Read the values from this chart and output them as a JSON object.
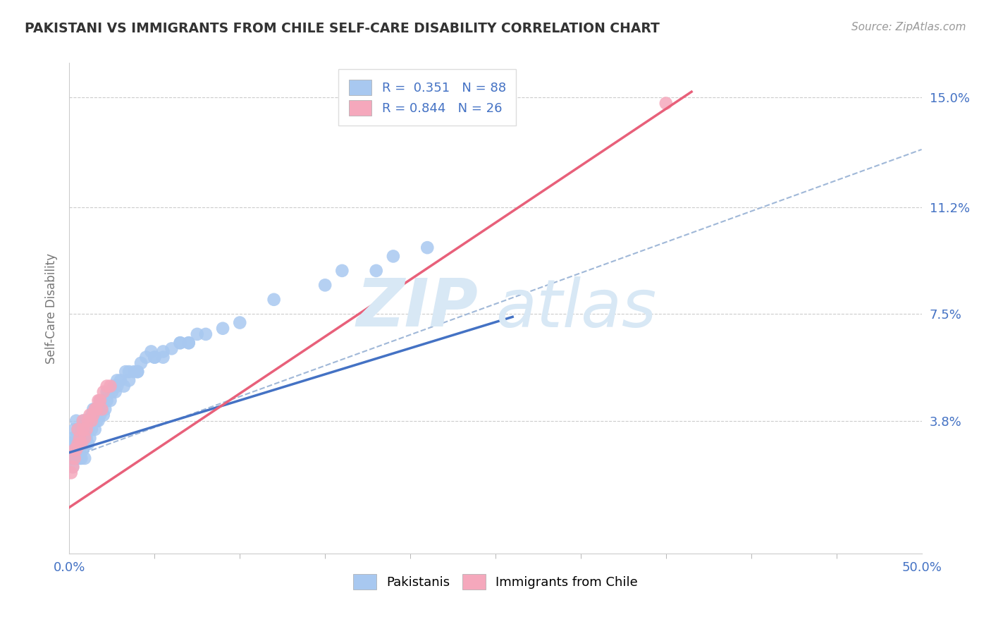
{
  "title": "PAKISTANI VS IMMIGRANTS FROM CHILE SELF-CARE DISABILITY CORRELATION CHART",
  "source_text": "Source: ZipAtlas.com",
  "ylabel": "Self-Care Disability",
  "xlim": [
    0.0,
    0.5
  ],
  "ylim": [
    -0.008,
    0.162
  ],
  "xticklabels": [
    "0.0%",
    "50.0%"
  ],
  "ytick_values": [
    0.038,
    0.075,
    0.112,
    0.15
  ],
  "ytick_labels": [
    "3.8%",
    "7.5%",
    "11.2%",
    "15.0%"
  ],
  "blue_R": 0.351,
  "blue_N": 88,
  "pink_R": 0.844,
  "pink_N": 26,
  "blue_color": "#A8C8F0",
  "pink_color": "#F5A8BC",
  "blue_line_color": "#4472C4",
  "pink_line_color": "#E8607A",
  "dashed_line_color": "#A0B8D8",
  "grid_color": "#CCCCCC",
  "title_color": "#333333",
  "axis_label_color": "#777777",
  "tick_label_color": "#4472C4",
  "watermark_color": "#D8E8F5",
  "blue_scatter_x": [
    0.001,
    0.001,
    0.002,
    0.002,
    0.002,
    0.003,
    0.003,
    0.003,
    0.004,
    0.004,
    0.004,
    0.005,
    0.005,
    0.005,
    0.005,
    0.006,
    0.006,
    0.006,
    0.007,
    0.007,
    0.007,
    0.008,
    0.008,
    0.008,
    0.009,
    0.009,
    0.01,
    0.01,
    0.01,
    0.011,
    0.011,
    0.012,
    0.012,
    0.013,
    0.013,
    0.014,
    0.014,
    0.015,
    0.015,
    0.016,
    0.016,
    0.017,
    0.017,
    0.018,
    0.018,
    0.019,
    0.02,
    0.02,
    0.021,
    0.022,
    0.023,
    0.024,
    0.025,
    0.026,
    0.027,
    0.028,
    0.03,
    0.032,
    0.035,
    0.038,
    0.04,
    0.042,
    0.045,
    0.048,
    0.05,
    0.055,
    0.06,
    0.065,
    0.07,
    0.075,
    0.08,
    0.09,
    0.1,
    0.12,
    0.15,
    0.18,
    0.19,
    0.21,
    0.05,
    0.16,
    0.022,
    0.035,
    0.04,
    0.055,
    0.065,
    0.07,
    0.028,
    0.033,
    0.01,
    0.015
  ],
  "blue_scatter_y": [
    0.03,
    0.025,
    0.028,
    0.032,
    0.022,
    0.03,
    0.035,
    0.025,
    0.032,
    0.028,
    0.038,
    0.03,
    0.025,
    0.035,
    0.028,
    0.032,
    0.028,
    0.025,
    0.035,
    0.03,
    0.025,
    0.038,
    0.032,
    0.028,
    0.032,
    0.025,
    0.038,
    0.032,
    0.03,
    0.035,
    0.03,
    0.038,
    0.032,
    0.04,
    0.035,
    0.042,
    0.038,
    0.04,
    0.035,
    0.042,
    0.038,
    0.042,
    0.038,
    0.045,
    0.04,
    0.042,
    0.045,
    0.04,
    0.042,
    0.045,
    0.048,
    0.045,
    0.048,
    0.05,
    0.048,
    0.05,
    0.052,
    0.05,
    0.052,
    0.055,
    0.055,
    0.058,
    0.06,
    0.062,
    0.06,
    0.062,
    0.063,
    0.065,
    0.065,
    0.068,
    0.068,
    0.07,
    0.072,
    0.08,
    0.085,
    0.09,
    0.095,
    0.098,
    0.06,
    0.09,
    0.048,
    0.055,
    0.055,
    0.06,
    0.065,
    0.065,
    0.052,
    0.055,
    0.038,
    0.042
  ],
  "pink_scatter_x": [
    0.001,
    0.002,
    0.003,
    0.003,
    0.004,
    0.005,
    0.006,
    0.007,
    0.008,
    0.009,
    0.01,
    0.011,
    0.012,
    0.013,
    0.014,
    0.015,
    0.016,
    0.017,
    0.018,
    0.019,
    0.02,
    0.022,
    0.024,
    0.005,
    0.008,
    0.35
  ],
  "pink_scatter_y": [
    0.02,
    0.022,
    0.025,
    0.028,
    0.028,
    0.03,
    0.032,
    0.03,
    0.035,
    0.032,
    0.035,
    0.038,
    0.04,
    0.038,
    0.04,
    0.042,
    0.042,
    0.045,
    0.045,
    0.042,
    0.048,
    0.05,
    0.05,
    0.035,
    0.038,
    0.148
  ],
  "blue_trend_x": [
    0.0,
    0.26
  ],
  "blue_trend_y": [
    0.027,
    0.074
  ],
  "pink_trend_x": [
    0.0,
    0.365
  ],
  "pink_trend_y": [
    0.008,
    0.152
  ],
  "dashed_trend_x": [
    0.0,
    0.5
  ],
  "dashed_trend_y": [
    0.025,
    0.132
  ]
}
